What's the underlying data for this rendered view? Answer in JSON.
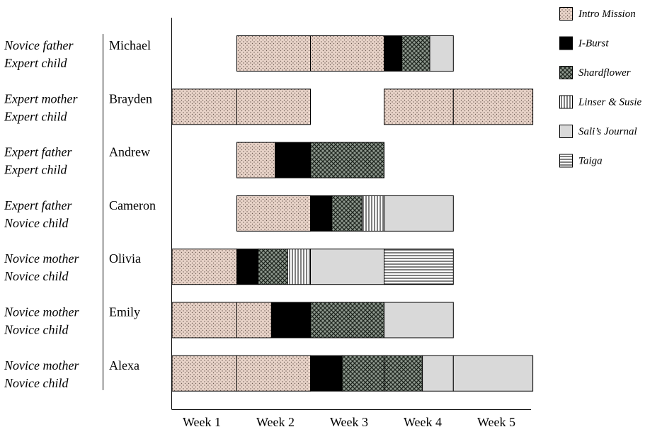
{
  "chart_data": {
    "type": "bar",
    "orientation": "horizontal-timeline",
    "title": "",
    "xlabel": "",
    "ylabel": "",
    "x_ticks": [
      "Week 1",
      "Week 2",
      "Week 3",
      "Week 4",
      "Week 5"
    ],
    "xlim": [
      0,
      5
    ],
    "grid": false,
    "legend_position": "top-right",
    "legend": [
      {
        "name": "Intro Mission",
        "pattern": "dots",
        "color": "#e8d3c8"
      },
      {
        "name": "I-Burst",
        "pattern": "solid",
        "color": "#000000"
      },
      {
        "name": "Shardflower",
        "pattern": "cross",
        "color": "#6f7a6f"
      },
      {
        "name": "Linser & Susie",
        "pattern": "vertical",
        "color": "#ffffff"
      },
      {
        "name": "Sali’s Journal",
        "pattern": "none",
        "color": "#d9d9d9"
      },
      {
        "name": "Taiga",
        "pattern": "horizontal",
        "color": "#ffffff"
      }
    ],
    "rows": [
      {
        "group_line1": "Novice father",
        "group_line2": "Expert child",
        "name": "Michael",
        "segments": [
          {
            "game": "Intro Mission",
            "start": 0.88,
            "end": 1.88
          },
          {
            "game": "Intro Mission",
            "start": 1.88,
            "end": 2.88
          },
          {
            "game": "I-Burst",
            "start": 2.88,
            "end": 3.12
          },
          {
            "game": "Shardflower",
            "start": 3.12,
            "end": 3.5
          },
          {
            "game": "Sali’s Journal",
            "start": 3.5,
            "end": 3.82
          }
        ]
      },
      {
        "group_line1": "Expert mother",
        "group_line2": "Expert child",
        "name": "Brayden",
        "segments": [
          {
            "game": "Intro Mission",
            "start": 0.0,
            "end": 0.88
          },
          {
            "game": "Intro Mission",
            "start": 0.88,
            "end": 1.88
          },
          {
            "game": "Intro Mission",
            "start": 2.88,
            "end": 3.82
          },
          {
            "game": "Intro Mission",
            "start": 3.82,
            "end": 4.9
          }
        ]
      },
      {
        "group_line1": "Expert father",
        "group_line2": "Expert child",
        "name": "Andrew",
        "segments": [
          {
            "game": "Intro Mission",
            "start": 0.88,
            "end": 1.4
          },
          {
            "game": "I-Burst",
            "start": 1.4,
            "end": 1.88
          },
          {
            "game": "Shardflower",
            "start": 1.88,
            "end": 2.88
          }
        ]
      },
      {
        "group_line1": "Expert father",
        "group_line2": "Novice child",
        "name": "Cameron",
        "segments": [
          {
            "game": "Intro Mission",
            "start": 0.88,
            "end": 1.88
          },
          {
            "game": "I-Burst",
            "start": 1.88,
            "end": 2.17
          },
          {
            "game": "Shardflower",
            "start": 2.17,
            "end": 2.58
          },
          {
            "game": "Linser & Susie",
            "start": 2.58,
            "end": 2.88
          },
          {
            "game": "Sali’s Journal",
            "start": 2.88,
            "end": 3.82
          }
        ]
      },
      {
        "group_line1": "Novice mother",
        "group_line2": "Novice child",
        "name": "Olivia",
        "segments": [
          {
            "game": "Intro Mission",
            "start": 0.0,
            "end": 0.88
          },
          {
            "game": "I-Burst",
            "start": 0.88,
            "end": 1.17
          },
          {
            "game": "Shardflower",
            "start": 1.17,
            "end": 1.57
          },
          {
            "game": "Linser & Susie",
            "start": 1.57,
            "end": 1.88
          },
          {
            "game": "Sali’s Journal",
            "start": 1.88,
            "end": 2.88
          },
          {
            "game": "Taiga",
            "start": 2.88,
            "end": 3.82
          }
        ]
      },
      {
        "group_line1": "Novice mother",
        "group_line2": "Novice child",
        "name": "Emily",
        "segments": [
          {
            "game": "Intro Mission",
            "start": 0.0,
            "end": 0.88
          },
          {
            "game": "Intro Mission",
            "start": 0.88,
            "end": 1.35
          },
          {
            "game": "I-Burst",
            "start": 1.35,
            "end": 1.88
          },
          {
            "game": "Shardflower",
            "start": 1.88,
            "end": 2.88
          },
          {
            "game": "Sali’s Journal",
            "start": 2.88,
            "end": 3.82
          }
        ]
      },
      {
        "group_line1": "Novice mother",
        "group_line2": "Novice child",
        "name": "Alexa",
        "segments": [
          {
            "game": "Intro Mission",
            "start": 0.0,
            "end": 0.88
          },
          {
            "game": "Intro Mission",
            "start": 0.88,
            "end": 1.88
          },
          {
            "game": "I-Burst",
            "start": 1.88,
            "end": 2.31
          },
          {
            "game": "Shardflower",
            "start": 2.31,
            "end": 2.88
          },
          {
            "game": "Shardflower",
            "start": 2.88,
            "end": 3.4
          },
          {
            "game": "Sali’s Journal",
            "start": 3.4,
            "end": 3.82
          },
          {
            "game": "Sali’s Journal",
            "start": 3.82,
            "end": 4.9
          }
        ]
      }
    ]
  }
}
